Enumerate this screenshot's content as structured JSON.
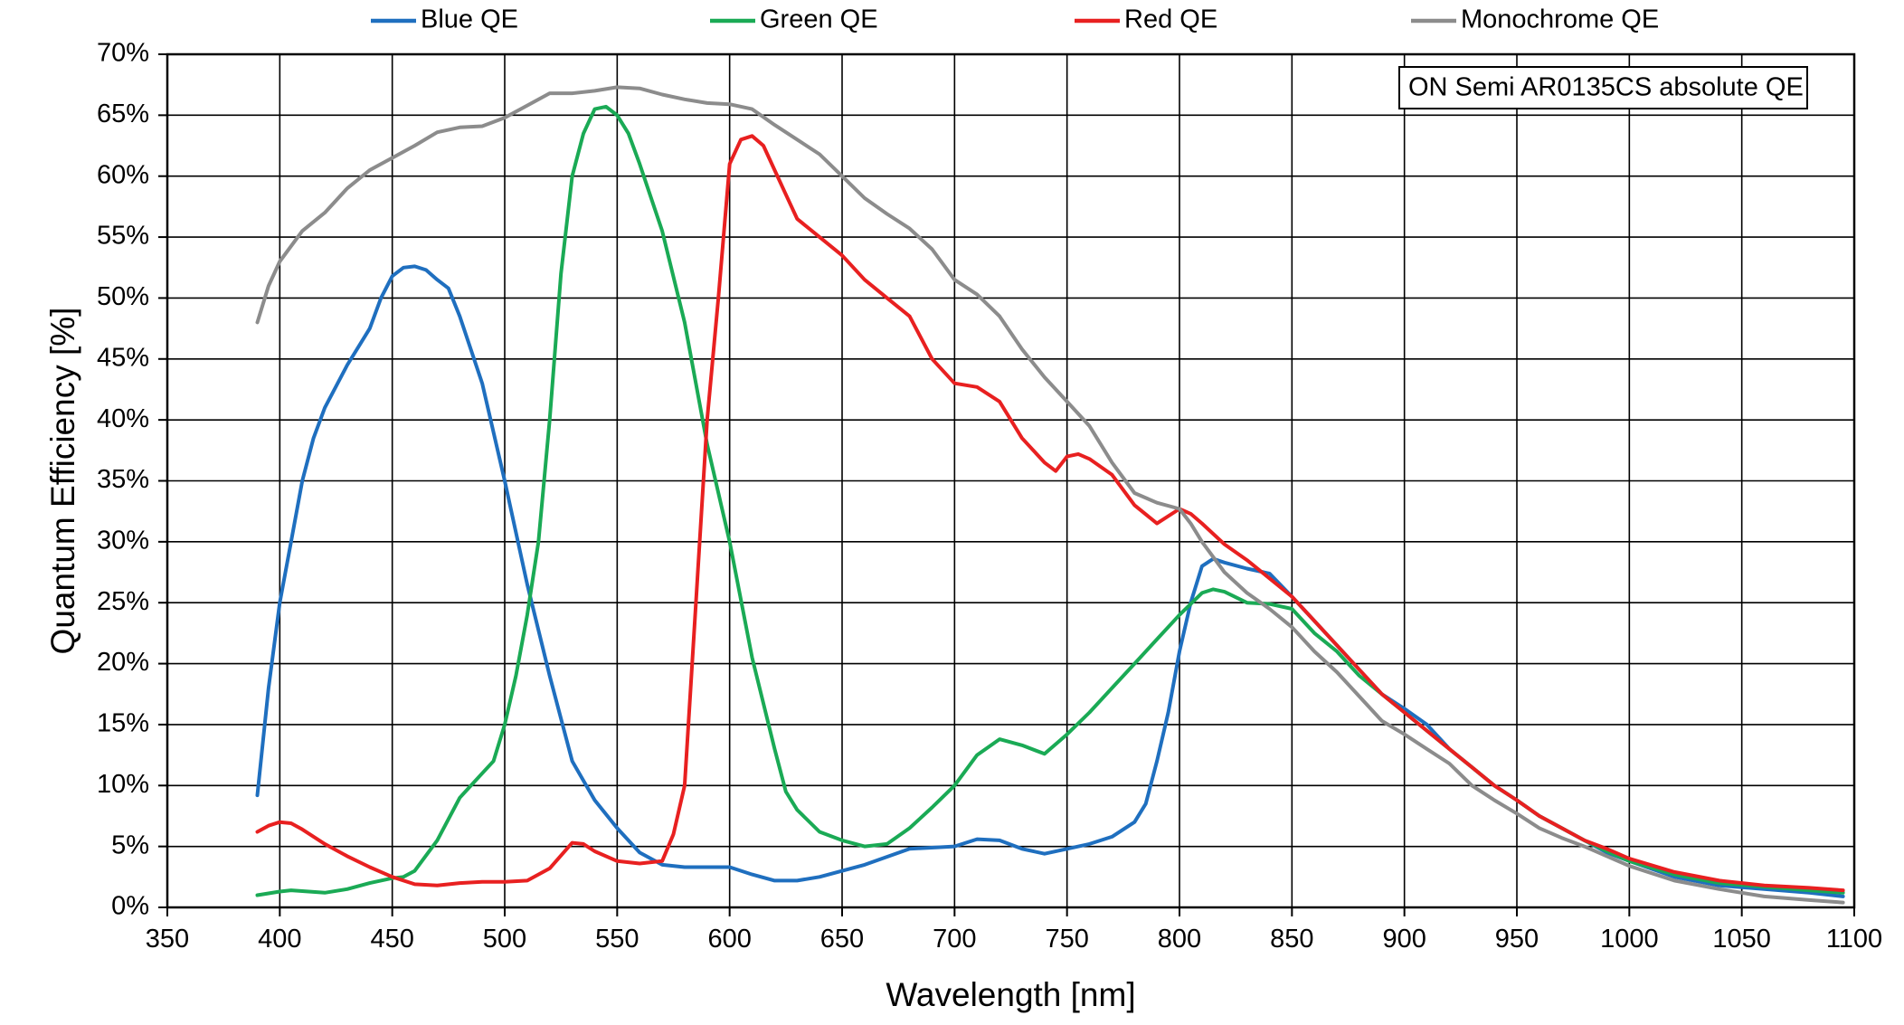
{
  "chart_data": {
    "type": "line",
    "title": "",
    "xlabel": "Wavelength [nm]",
    "ylabel": "Quantum Efficiency [%]",
    "xlim": [
      350,
      1100
    ],
    "ylim": [
      0,
      70
    ],
    "x_ticks": [
      350,
      400,
      450,
      500,
      550,
      600,
      650,
      700,
      750,
      800,
      850,
      900,
      950,
      1000,
      1050,
      1100
    ],
    "y_ticks": [
      0,
      5,
      10,
      15,
      20,
      25,
      30,
      35,
      40,
      45,
      50,
      55,
      60,
      65,
      70
    ],
    "y_tick_suffix": "%",
    "grid": true,
    "legend_position": "top",
    "annotation": "ON Semi AR0135CS absolute QE",
    "series": [
      {
        "name": "Blue QE",
        "color": "#1f6fbf",
        "points": [
          [
            390,
            9.2
          ],
          [
            395,
            18
          ],
          [
            400,
            25
          ],
          [
            405,
            30
          ],
          [
            410,
            35
          ],
          [
            415,
            38.5
          ],
          [
            420,
            41
          ],
          [
            430,
            44.5
          ],
          [
            440,
            47.5
          ],
          [
            445,
            50
          ],
          [
            450,
            51.8
          ],
          [
            455,
            52.5
          ],
          [
            460,
            52.6
          ],
          [
            465,
            52.3
          ],
          [
            470,
            51.5
          ],
          [
            475,
            50.8
          ],
          [
            480,
            48.5
          ],
          [
            490,
            43
          ],
          [
            500,
            35
          ],
          [
            510,
            26.5
          ],
          [
            520,
            19
          ],
          [
            530,
            12
          ],
          [
            540,
            8.8
          ],
          [
            550,
            6.5
          ],
          [
            560,
            4.5
          ],
          [
            570,
            3.5
          ],
          [
            580,
            3.3
          ],
          [
            590,
            3.3
          ],
          [
            600,
            3.3
          ],
          [
            610,
            2.7
          ],
          [
            620,
            2.2
          ],
          [
            630,
            2.2
          ],
          [
            640,
            2.5
          ],
          [
            660,
            3.5
          ],
          [
            680,
            4.8
          ],
          [
            700,
            5
          ],
          [
            710,
            5.6
          ],
          [
            720,
            5.5
          ],
          [
            730,
            4.8
          ],
          [
            740,
            4.4
          ],
          [
            750,
            4.8
          ],
          [
            760,
            5.2
          ],
          [
            770,
            5.8
          ],
          [
            780,
            7
          ],
          [
            785,
            8.5
          ],
          [
            790,
            12
          ],
          [
            795,
            16
          ],
          [
            800,
            21
          ],
          [
            805,
            25
          ],
          [
            810,
            28
          ],
          [
            815,
            28.6
          ],
          [
            820,
            28.3
          ],
          [
            830,
            27.8
          ],
          [
            840,
            27.4
          ],
          [
            850,
            25.5
          ],
          [
            860,
            23.5
          ],
          [
            870,
            21.5
          ],
          [
            880,
            19.5
          ],
          [
            890,
            17.5
          ],
          [
            900,
            16.3
          ],
          [
            910,
            15
          ],
          [
            920,
            13
          ],
          [
            930,
            11.5
          ],
          [
            940,
            10
          ],
          [
            950,
            8.8
          ],
          [
            960,
            7.5
          ],
          [
            970,
            6.5
          ],
          [
            980,
            5.5
          ],
          [
            990,
            4.5
          ],
          [
            1000,
            3.8
          ],
          [
            1020,
            2.5
          ],
          [
            1040,
            1.8
          ],
          [
            1060,
            1.5
          ],
          [
            1080,
            1.2
          ],
          [
            1095,
            0.9
          ]
        ]
      },
      {
        "name": "Green QE",
        "color": "#1aaa55",
        "points": [
          [
            390,
            1
          ],
          [
            400,
            1.3
          ],
          [
            405,
            1.4
          ],
          [
            420,
            1.2
          ],
          [
            430,
            1.5
          ],
          [
            440,
            2
          ],
          [
            450,
            2.4
          ],
          [
            455,
            2.5
          ],
          [
            460,
            3
          ],
          [
            470,
            5.5
          ],
          [
            480,
            9
          ],
          [
            490,
            11
          ],
          [
            495,
            12
          ],
          [
            500,
            15
          ],
          [
            505,
            19
          ],
          [
            510,
            24
          ],
          [
            515,
            30
          ],
          [
            520,
            40
          ],
          [
            525,
            52
          ],
          [
            530,
            60
          ],
          [
            535,
            63.5
          ],
          [
            540,
            65.5
          ],
          [
            545,
            65.7
          ],
          [
            550,
            65
          ],
          [
            555,
            63.5
          ],
          [
            560,
            61
          ],
          [
            570,
            55.5
          ],
          [
            580,
            48
          ],
          [
            590,
            38
          ],
          [
            600,
            30
          ],
          [
            610,
            20.5
          ],
          [
            620,
            13
          ],
          [
            625,
            9.5
          ],
          [
            630,
            8
          ],
          [
            640,
            6.2
          ],
          [
            650,
            5.5
          ],
          [
            660,
            5
          ],
          [
            670,
            5.2
          ],
          [
            680,
            6.5
          ],
          [
            690,
            8.2
          ],
          [
            700,
            10
          ],
          [
            710,
            12.5
          ],
          [
            720,
            13.8
          ],
          [
            730,
            13.3
          ],
          [
            740,
            12.6
          ],
          [
            750,
            14.2
          ],
          [
            760,
            16
          ],
          [
            770,
            18
          ],
          [
            780,
            20
          ],
          [
            790,
            22
          ],
          [
            800,
            24
          ],
          [
            810,
            25.8
          ],
          [
            815,
            26.1
          ],
          [
            820,
            25.9
          ],
          [
            830,
            25
          ],
          [
            840,
            24.9
          ],
          [
            850,
            24.5
          ],
          [
            860,
            22.5
          ],
          [
            870,
            21
          ],
          [
            880,
            19
          ],
          [
            890,
            17.5
          ],
          [
            900,
            16
          ],
          [
            910,
            14.5
          ],
          [
            920,
            13
          ],
          [
            930,
            11.5
          ],
          [
            940,
            10
          ],
          [
            950,
            8.8
          ],
          [
            960,
            7.5
          ],
          [
            970,
            6.5
          ],
          [
            980,
            5.5
          ],
          [
            990,
            4.6
          ],
          [
            1000,
            3.8
          ],
          [
            1020,
            2.7
          ],
          [
            1040,
            2
          ],
          [
            1060,
            1.7
          ],
          [
            1080,
            1.4
          ],
          [
            1095,
            1.2
          ]
        ]
      },
      {
        "name": "Red QE",
        "color": "#e82020",
        "points": [
          [
            390,
            6.2
          ],
          [
            395,
            6.7
          ],
          [
            400,
            7
          ],
          [
            405,
            6.9
          ],
          [
            410,
            6.4
          ],
          [
            420,
            5.2
          ],
          [
            430,
            4.2
          ],
          [
            440,
            3.3
          ],
          [
            450,
            2.5
          ],
          [
            460,
            1.9
          ],
          [
            470,
            1.8
          ],
          [
            480,
            2
          ],
          [
            490,
            2.1
          ],
          [
            500,
            2.1
          ],
          [
            510,
            2.2
          ],
          [
            520,
            3.2
          ],
          [
            530,
            5.3
          ],
          [
            535,
            5.2
          ],
          [
            540,
            4.6
          ],
          [
            550,
            3.8
          ],
          [
            560,
            3.6
          ],
          [
            570,
            3.8
          ],
          [
            575,
            6
          ],
          [
            580,
            10
          ],
          [
            585,
            25
          ],
          [
            590,
            40
          ],
          [
            595,
            50
          ],
          [
            600,
            61
          ],
          [
            605,
            63
          ],
          [
            610,
            63.3
          ],
          [
            615,
            62.5
          ],
          [
            620,
            60.5
          ],
          [
            625,
            58.5
          ],
          [
            630,
            56.5
          ],
          [
            640,
            55
          ],
          [
            650,
            53.5
          ],
          [
            660,
            51.5
          ],
          [
            670,
            50
          ],
          [
            680,
            48.5
          ],
          [
            690,
            45
          ],
          [
            700,
            43
          ],
          [
            710,
            42.7
          ],
          [
            720,
            41.5
          ],
          [
            730,
            38.5
          ],
          [
            740,
            36.5
          ],
          [
            745,
            35.8
          ],
          [
            750,
            37
          ],
          [
            755,
            37.2
          ],
          [
            760,
            36.8
          ],
          [
            770,
            35.5
          ],
          [
            780,
            33
          ],
          [
            790,
            31.5
          ],
          [
            800,
            32.7
          ],
          [
            805,
            32.3
          ],
          [
            810,
            31.5
          ],
          [
            820,
            29.8
          ],
          [
            830,
            28.5
          ],
          [
            840,
            27
          ],
          [
            850,
            25.5
          ],
          [
            860,
            23.5
          ],
          [
            870,
            21.5
          ],
          [
            880,
            19.5
          ],
          [
            890,
            17.5
          ],
          [
            900,
            16
          ],
          [
            910,
            14.5
          ],
          [
            920,
            13
          ],
          [
            930,
            11.5
          ],
          [
            940,
            10
          ],
          [
            950,
            8.8
          ],
          [
            960,
            7.5
          ],
          [
            970,
            6.5
          ],
          [
            980,
            5.5
          ],
          [
            990,
            4.8
          ],
          [
            1000,
            4
          ],
          [
            1020,
            2.9
          ],
          [
            1040,
            2.2
          ],
          [
            1060,
            1.8
          ],
          [
            1080,
            1.6
          ],
          [
            1095,
            1.4
          ]
        ]
      },
      {
        "name": "Monochrome QE",
        "color": "#8c8c8c",
        "points": [
          [
            390,
            48
          ],
          [
            395,
            51
          ],
          [
            400,
            53
          ],
          [
            410,
            55.5
          ],
          [
            420,
            57
          ],
          [
            430,
            59
          ],
          [
            440,
            60.5
          ],
          [
            450,
            61.5
          ],
          [
            460,
            62.5
          ],
          [
            470,
            63.6
          ],
          [
            480,
            64
          ],
          [
            490,
            64.1
          ],
          [
            500,
            64.8
          ],
          [
            510,
            65.8
          ],
          [
            520,
            66.8
          ],
          [
            530,
            66.8
          ],
          [
            540,
            67
          ],
          [
            550,
            67.3
          ],
          [
            560,
            67.2
          ],
          [
            570,
            66.7
          ],
          [
            580,
            66.3
          ],
          [
            590,
            66
          ],
          [
            600,
            65.9
          ],
          [
            610,
            65.5
          ],
          [
            620,
            64.2
          ],
          [
            630,
            63
          ],
          [
            640,
            61.8
          ],
          [
            650,
            60
          ],
          [
            660,
            58.2
          ],
          [
            670,
            56.9
          ],
          [
            680,
            55.7
          ],
          [
            690,
            54
          ],
          [
            700,
            51.5
          ],
          [
            710,
            50.3
          ],
          [
            720,
            48.5
          ],
          [
            730,
            45.8
          ],
          [
            740,
            43.5
          ],
          [
            750,
            41.5
          ],
          [
            760,
            39.5
          ],
          [
            770,
            36.5
          ],
          [
            780,
            34
          ],
          [
            790,
            33.2
          ],
          [
            800,
            32.7
          ],
          [
            805,
            31.5
          ],
          [
            810,
            30
          ],
          [
            820,
            27.5
          ],
          [
            830,
            25.8
          ],
          [
            840,
            24.5
          ],
          [
            850,
            23
          ],
          [
            860,
            21
          ],
          [
            870,
            19.3
          ],
          [
            880,
            17.3
          ],
          [
            890,
            15.3
          ],
          [
            900,
            14.2
          ],
          [
            910,
            13
          ],
          [
            920,
            11.8
          ],
          [
            930,
            10
          ],
          [
            940,
            8.8
          ],
          [
            950,
            7.7
          ],
          [
            960,
            6.5
          ],
          [
            970,
            5.7
          ],
          [
            980,
            5
          ],
          [
            990,
            4.2
          ],
          [
            1000,
            3.4
          ],
          [
            1020,
            2.2
          ],
          [
            1040,
            1.5
          ],
          [
            1060,
            0.9
          ],
          [
            1080,
            0.6
          ],
          [
            1095,
            0.4
          ]
        ]
      }
    ]
  }
}
